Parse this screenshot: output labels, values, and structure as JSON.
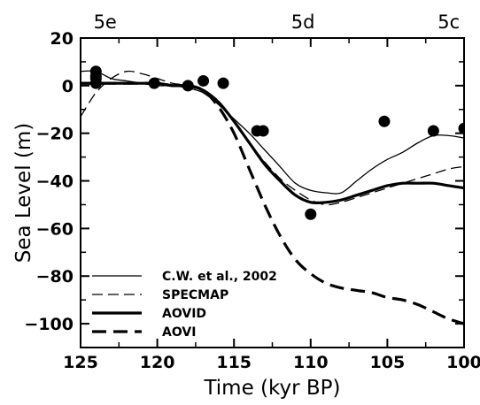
{
  "chart_data": {
    "type": "line",
    "xlabel": "Time (kyr BP)",
    "ylabel": "Sea Level (m)",
    "xlim": [
      125,
      100
    ],
    "ylim": [
      -110,
      20
    ],
    "x_reversed": true,
    "x_ticks": [
      "125",
      "120",
      "115",
      "110",
      "105",
      "100"
    ],
    "y_ticks": [
      "20",
      "0",
      "−20",
      "−40",
      "−60",
      "−80",
      "−100"
    ],
    "grid": false,
    "legend_position": "bottom-left",
    "top_labels": [
      {
        "text": "5e",
        "x": 123.4
      },
      {
        "text": "5d",
        "x": 110.5
      },
      {
        "text": "5c",
        "x": 101.0
      }
    ],
    "series": [
      {
        "name": "C.W. et al., 2002",
        "style": "thin-solid",
        "x": [
          125,
          124,
          123,
          122,
          121,
          120,
          119,
          118,
          117,
          116,
          115,
          114,
          113,
          112,
          111,
          110,
          109,
          108,
          107,
          106,
          105,
          104,
          103,
          102,
          101,
          100
        ],
        "y": [
          6,
          6,
          3,
          2,
          1,
          0,
          0,
          -1,
          -3,
          -8,
          -14,
          -20,
          -27,
          -34,
          -41,
          -44,
          -45,
          -45,
          -40,
          -35,
          -31,
          -28,
          -24,
          -21,
          -21,
          -22
        ]
      },
      {
        "name": "SPECMAP",
        "style": "thin-dashed",
        "x": [
          125,
          124,
          123,
          122,
          121,
          120,
          119,
          118,
          117,
          116,
          115,
          114,
          113,
          112,
          111,
          110,
          109,
          108,
          107,
          106,
          105,
          104,
          103,
          102,
          101,
          100
        ],
        "y": [
          -13,
          -3,
          3,
          6,
          5,
          3,
          1,
          0,
          -3,
          -8,
          -15,
          -24,
          -32,
          -39,
          -44,
          -48,
          -50,
          -49,
          -47,
          -45,
          -43,
          -41,
          -39,
          -37,
          -35,
          -34
        ]
      },
      {
        "name": "AOVID",
        "style": "thick-solid",
        "x": [
          125,
          124,
          123,
          122,
          121,
          120,
          119,
          118,
          117,
          116,
          115,
          114,
          113,
          112,
          111,
          110,
          109,
          108,
          107,
          106,
          105,
          104,
          103,
          102,
          101,
          100
        ],
        "y": [
          1,
          1,
          1,
          1,
          1,
          1,
          0,
          0,
          -2,
          -7,
          -15,
          -24,
          -33,
          -40,
          -46,
          -49,
          -49,
          -48,
          -46,
          -44,
          -42,
          -41,
          -41,
          -41,
          -42,
          -43
        ]
      },
      {
        "name": "AOVI",
        "style": "thick-dashed",
        "x": [
          125,
          124,
          123,
          122,
          121,
          120,
          119,
          118,
          117,
          116,
          115,
          114,
          113,
          112,
          111,
          110,
          109,
          108,
          107,
          106,
          105,
          104,
          103,
          102,
          101,
          100
        ],
        "y": [
          1,
          1,
          1,
          1,
          1,
          1,
          0,
          0,
          -2,
          -9,
          -20,
          -35,
          -50,
          -63,
          -73,
          -79,
          -83,
          -85,
          -86,
          -87,
          -89,
          -90,
          -92,
          -95,
          -98,
          -100
        ]
      }
    ],
    "points": {
      "x": [
        124,
        124,
        124,
        124,
        120.2,
        118,
        117,
        115.7,
        113.5,
        113.1,
        110,
        105.2,
        102,
        100
      ],
      "y": [
        6,
        4,
        3,
        1,
        1,
        0,
        2,
        1,
        -19,
        -19,
        -54,
        -15,
        -19,
        -18
      ]
    }
  }
}
